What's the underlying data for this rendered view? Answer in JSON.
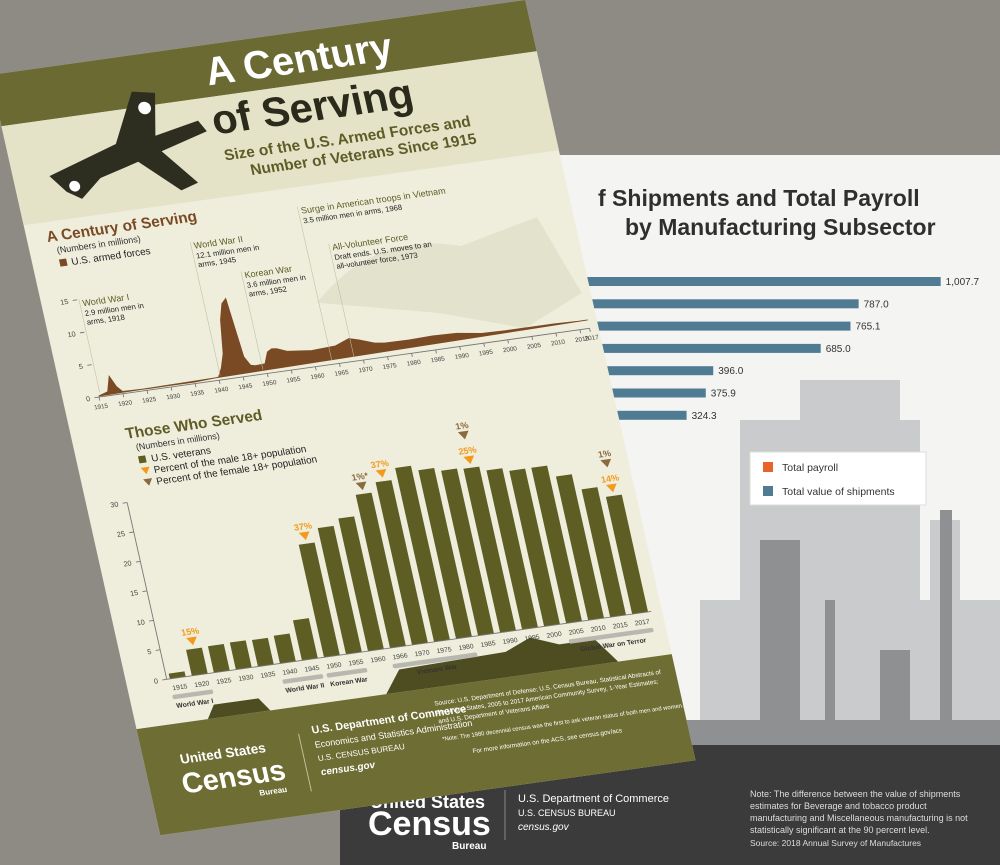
{
  "front_sheet": {
    "title_line1": "A Century",
    "title_line2": "of Serving",
    "subtitle_line1": "Size of the U.S. Armed Forces and",
    "subtitle_line2": "Number of Veterans Since 1915",
    "war_labels": [
      "World War I",
      "World War II",
      "Korean War",
      "Vietnam War",
      "Global War on Terror"
    ],
    "footer": {
      "logo_top": "United States",
      "logo_main": "Census",
      "logo_bottom": "Bureau",
      "department": "U.S. Department of Commerce",
      "administration": "Economics and Statistics Administration",
      "bureau": "U.S. CENSUS BUREAU",
      "website": "census.gov",
      "source_lines": [
        "Source: U.S. Department of Defense; U.S. Census Bureau, Statistical Abstracts of",
        "the United States, 2005 to 2017 American Community Survey, 1-Year Estimates;",
        "and U.S. Department of Veterans Affairs"
      ],
      "note": "*Note: The 1980 decennial census was the first to ask veteran status of both men and women.",
      "more_info": "For more information on the ACS, see census.gov/acs"
    }
  },
  "back_sheet": {
    "footer": {
      "logo_top": "United States",
      "logo_main": "Census",
      "logo_bottom": "Bureau",
      "department": "U.S. Department of Commerce",
      "bureau": "U.S. CENSUS BUREAU",
      "website": "census.gov",
      "note_lines": [
        "Note: The difference between the value of shipments",
        "estimates for Beverage and tobacco product",
        "manufacturing and Miscellaneous manufacturing is not",
        "statistically significant at the 90 percent level."
      ],
      "source": "Source: 2018 Annual Survey of Manufactures"
    }
  },
  "chart_data": [
    {
      "type": "area",
      "title": "A Century of Serving",
      "subtitle": "(Numbers in millions)",
      "x": [
        1915,
        1917,
        1918,
        1919,
        1920,
        1925,
        1930,
        1935,
        1940,
        1941,
        1942,
        1943,
        1944,
        1945,
        1946,
        1947,
        1948,
        1950,
        1951,
        1952,
        1953,
        1955,
        1960,
        1965,
        1968,
        1970,
        1973,
        1975,
        1980,
        1985,
        1990,
        1995,
        2000,
        2005,
        2010,
        2015,
        2017
      ],
      "series": [
        {
          "name": "U.S. armed forces",
          "color": "#7a4a24",
          "values": [
            0.17,
            0.6,
            2.9,
            1.2,
            0.34,
            0.25,
            0.26,
            0.25,
            0.46,
            1.8,
            3.9,
            9.0,
            11.4,
            12.1,
            3.0,
            1.6,
            1.4,
            1.5,
            3.2,
            3.6,
            3.5,
            2.9,
            2.5,
            2.7,
            3.5,
            3.1,
            2.3,
            2.1,
            2.05,
            2.15,
            2.05,
            1.5,
            1.4,
            1.4,
            1.4,
            1.3,
            1.3
          ]
        }
      ],
      "xlim": [
        1915,
        2017
      ],
      "xticks": [
        1915,
        1920,
        1925,
        1930,
        1935,
        1940,
        1945,
        1950,
        1955,
        1960,
        1965,
        1970,
        1975,
        1980,
        1985,
        1990,
        1995,
        2000,
        2005,
        2010,
        2015,
        2017
      ],
      "ylim": [
        0,
        15
      ],
      "yticks": [
        0,
        5,
        10,
        15
      ],
      "annotations": [
        {
          "title": "World War I",
          "lines": [
            "2.9 million men in",
            "arms, 1918"
          ]
        },
        {
          "title": "World War II",
          "lines": [
            "12.1 million men in",
            "arms, 1945"
          ]
        },
        {
          "title": "Korean War",
          "lines": [
            "3.6 million men in",
            "arms, 1952"
          ]
        },
        {
          "title": "Surge in American troops in Vietnam",
          "lines": [
            "3.5 million men in arms, 1968"
          ]
        },
        {
          "title": "All-Volunteer Force",
          "lines": [
            "Draft ends. U.S. moves to an",
            "all-volunteer force, 1973"
          ]
        }
      ]
    },
    {
      "type": "bar",
      "title": "Those Who Served",
      "subtitle": "(Numbers in millions)",
      "categories": [
        "1915",
        "1920",
        "1925",
        "1930",
        "1935",
        "1940",
        "1945",
        "1950",
        "1955",
        "1960",
        "1966",
        "1970",
        "1975",
        "1980",
        "1985",
        "1990",
        "1995",
        "2000",
        "2005",
        "2010",
        "2015",
        "2017"
      ],
      "series": [
        {
          "name": "U.S. veterans",
          "color": "#5e5d24",
          "values": [
            0.9,
            4.4,
            4.5,
            4.6,
            4.5,
            4.7,
            6.8,
            19.1,
            21.4,
            22.5,
            26.0,
            27.6,
            29.5,
            28.6,
            28.0,
            27.8,
            27.0,
            26.4,
            26.4,
            24.4,
            21.7,
            19.9
          ]
        }
      ],
      "percent_markers": [
        {
          "name": "Percent of the male 18+ population",
          "color": "#f39a1e",
          "values": [
            null,
            15,
            null,
            null,
            null,
            null,
            null,
            37,
            null,
            null,
            null,
            37,
            null,
            null,
            null,
            25,
            null,
            null,
            null,
            null,
            null,
            14
          ],
          "value_labels": [
            null,
            "15%",
            null,
            null,
            null,
            null,
            null,
            "37%",
            null,
            null,
            null,
            "37%",
            null,
            null,
            null,
            "25%",
            null,
            null,
            null,
            null,
            null,
            "14%"
          ]
        },
        {
          "name": "Percent of the female 18+ population",
          "color": "#8a6a3e",
          "values": [
            null,
            null,
            null,
            null,
            null,
            null,
            null,
            null,
            null,
            null,
            1,
            null,
            null,
            null,
            null,
            1,
            null,
            null,
            null,
            null,
            null,
            1
          ],
          "value_labels": [
            null,
            null,
            null,
            null,
            null,
            null,
            null,
            null,
            null,
            null,
            "1%*",
            null,
            null,
            null,
            null,
            "1%",
            null,
            null,
            null,
            null,
            null,
            "1%"
          ]
        }
      ],
      "ylim": [
        0,
        30
      ],
      "yticks": [
        0,
        5,
        10,
        15,
        20,
        25,
        30
      ]
    },
    {
      "type": "hbar",
      "title_lines": [
        "f Shipments and Total Payroll",
        "by Manufacturing Subsector"
      ],
      "series": [
        {
          "name": "Total payroll",
          "color": "#e8632a",
          "values": [
            null,
            null,
            null,
            null,
            null,
            null,
            null
          ]
        },
        {
          "name": "Total value of shipments",
          "color": "#4f7b93",
          "values": [
            1007.7,
            787.0,
            765.1,
            685.0,
            396.0,
            375.9,
            324.3
          ],
          "value_labels": [
            "1,007.7",
            "787.0",
            "765.1",
            "685.0",
            "396.0",
            "375.9",
            "324.3"
          ]
        }
      ],
      "xlim": [
        0,
        1100
      ]
    }
  ]
}
